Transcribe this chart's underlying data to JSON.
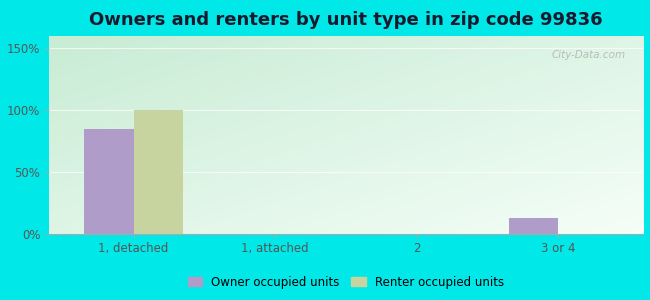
{
  "title": "Owners and renters by unit type in zip code 99836",
  "categories": [
    "1, detached",
    "1, attached",
    "2",
    "3 or 4"
  ],
  "owner_values": [
    85,
    0,
    0,
    13
  ],
  "renter_values": [
    100,
    0,
    0,
    0
  ],
  "owner_color": "#b09cc8",
  "renter_color": "#c8d4a0",
  "yticks": [
    0,
    50,
    100,
    150
  ],
  "yticklabels": [
    "0%",
    "50%",
    "100%",
    "150%"
  ],
  "ylim": [
    0,
    160
  ],
  "bar_width": 0.35,
  "legend_owner": "Owner occupied units",
  "legend_renter": "Renter occupied units",
  "title_fontsize": 13,
  "fig_bg": "#00e8e8",
  "watermark": "City-Data.com",
  "gradient_top_left": "#c8ecd4",
  "gradient_bottom_right": "#f0faf0"
}
